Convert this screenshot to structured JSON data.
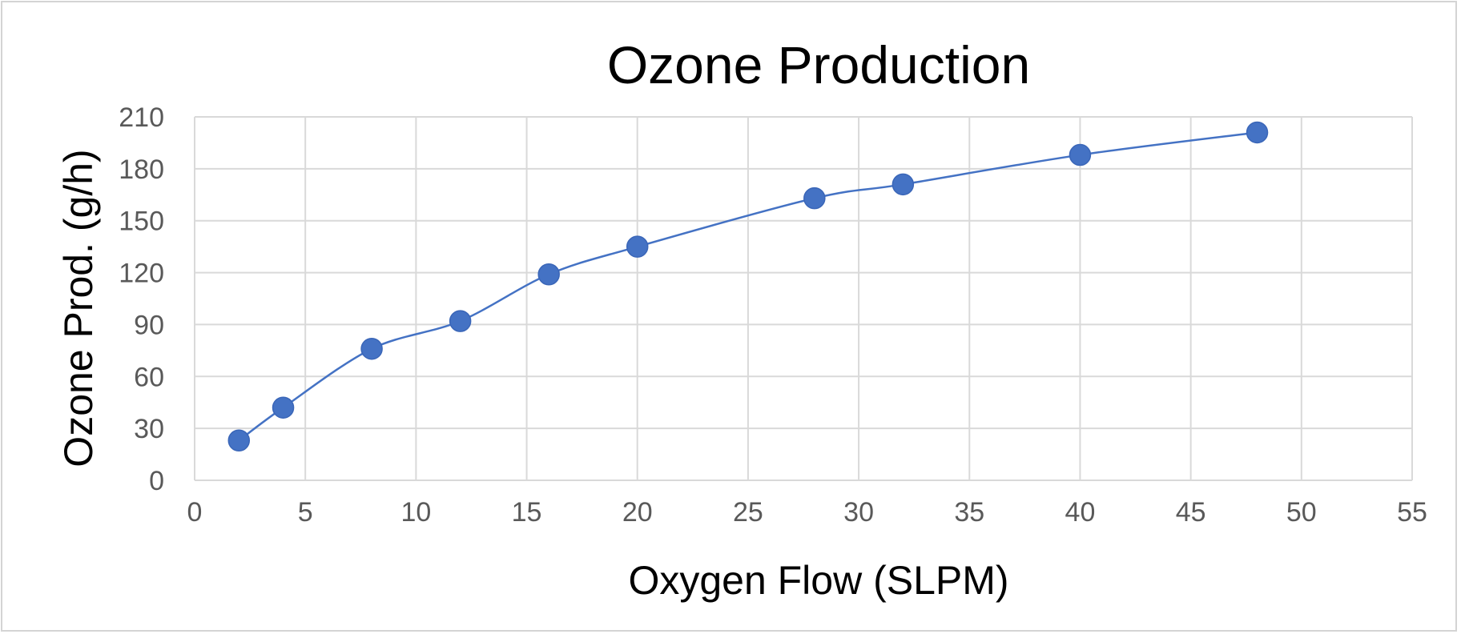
{
  "chart_data": {
    "type": "scatter",
    "title": "Ozone Production",
    "xlabel": "Oxygen Flow (SLPM)",
    "ylabel": "Ozone Prod. (g/h)",
    "xlim": [
      0,
      55
    ],
    "ylim": [
      0,
      210
    ],
    "x_ticks": [
      0,
      5,
      10,
      15,
      20,
      25,
      30,
      35,
      40,
      45,
      50,
      55
    ],
    "y_ticks": [
      0,
      30,
      60,
      90,
      120,
      150,
      180,
      210
    ],
    "grid": true,
    "series": [
      {
        "style": "smoothed line with markers",
        "color": "#4472c4",
        "x": [
          2,
          4,
          8,
          12,
          16,
          20,
          28,
          32,
          40,
          48
        ],
        "y": [
          23,
          42,
          76,
          92,
          119,
          135,
          163,
          171,
          188,
          201
        ]
      }
    ]
  }
}
